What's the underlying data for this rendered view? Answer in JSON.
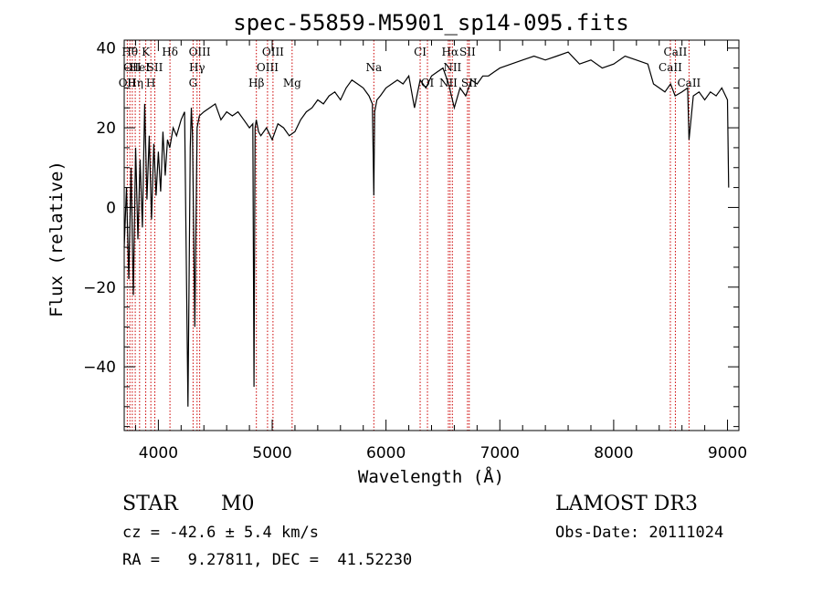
{
  "chart_data": {
    "type": "line",
    "title": "spec-55859-M5901_sp14-095.fits",
    "xlabel": "Wavelength (Å)",
    "ylabel": "Flux (relative)",
    "xlim": [
      3700,
      9100
    ],
    "ylim": [
      -56,
      42
    ],
    "xticks": [
      4000,
      5000,
      6000,
      7000,
      8000,
      9000
    ],
    "yticks": [
      -40,
      -20,
      0,
      20,
      40
    ],
    "series": [
      {
        "name": "flux",
        "x": [
          3700,
          3720,
          3740,
          3760,
          3780,
          3800,
          3820,
          3840,
          3860,
          3880,
          3900,
          3920,
          3940,
          3960,
          3980,
          4000,
          4020,
          4040,
          4060,
          4080,
          4100,
          4130,
          4160,
          4200,
          4230,
          4260,
          4280,
          4290,
          4300,
          4320,
          4340,
          4360,
          4400,
          4450,
          4500,
          4550,
          4600,
          4650,
          4700,
          4750,
          4800,
          4830,
          4840,
          4850,
          4860,
          4880,
          4900,
          4950,
          5000,
          5050,
          5100,
          5150,
          5200,
          5250,
          5300,
          5350,
          5400,
          5450,
          5500,
          5550,
          5600,
          5650,
          5700,
          5750,
          5800,
          5850,
          5880,
          5893,
          5900,
          5920,
          5950,
          6000,
          6050,
          6100,
          6150,
          6200,
          6250,
          6300,
          6350,
          6400,
          6450,
          6500,
          6550,
          6600,
          6650,
          6700,
          6750,
          6800,
          6850,
          6900,
          6950,
          7000,
          7100,
          7200,
          7300,
          7400,
          7500,
          7600,
          7700,
          7800,
          7900,
          8000,
          8100,
          8200,
          8300,
          8350,
          8400,
          8450,
          8500,
          8540,
          8600,
          8650,
          8662,
          8700,
          8750,
          8800,
          8850,
          8900,
          8950,
          9000,
          9010
        ],
        "values": [
          -10,
          5,
          -18,
          10,
          -22,
          15,
          -8,
          12,
          -5,
          26,
          2,
          18,
          -3,
          16,
          3,
          14,
          4,
          19,
          8,
          17,
          15,
          20,
          18,
          22,
          24,
          -50,
          15,
          25,
          18,
          -30,
          20,
          23,
          24,
          25,
          26,
          22,
          24,
          23,
          24,
          22,
          20,
          21,
          -45,
          20,
          22,
          19,
          18,
          20,
          17,
          21,
          20,
          18,
          19,
          22,
          24,
          25,
          27,
          26,
          28,
          29,
          27,
          30,
          32,
          31,
          30,
          28,
          26,
          3,
          24,
          27,
          28,
          30,
          31,
          32,
          31,
          33,
          25,
          32,
          30,
          33,
          34,
          35,
          31,
          25,
          30,
          28,
          32,
          31,
          33,
          33,
          34,
          35,
          36,
          37,
          38,
          37,
          38,
          39,
          36,
          37,
          35,
          36,
          38,
          37,
          36,
          31,
          30,
          29,
          31,
          28,
          29,
          30,
          17,
          28,
          29,
          27,
          29,
          28,
          30,
          27,
          5
        ]
      }
    ],
    "line_markers": [
      {
        "wl": 3727,
        "label": "OII",
        "row": 3
      },
      {
        "wl": 3750,
        "label": "Hθ",
        "row": 1
      },
      {
        "wl": 3771,
        "label": "OII",
        "row": 2
      },
      {
        "wl": 3797,
        "label": "Hη",
        "row": 3
      },
      {
        "wl": 3835,
        "label": "HeI",
        "row": 2
      },
      {
        "wl": 3889,
        "label": "K",
        "row": 1
      },
      {
        "wl": 3934,
        "label": "H",
        "row": 3
      },
      {
        "wl": 3969,
        "label": "SII",
        "row": 2
      },
      {
        "wl": 4102,
        "label": "Hδ",
        "row": 1
      },
      {
        "wl": 4305,
        "label": "G",
        "row": 3
      },
      {
        "wl": 4340,
        "label": "Hγ",
        "row": 2
      },
      {
        "wl": 4363,
        "label": "OIII",
        "row": 1
      },
      {
        "wl": 4861,
        "label": "Hβ",
        "row": 3
      },
      {
        "wl": 4959,
        "label": "OIII",
        "row": 2
      },
      {
        "wl": 5007,
        "label": "OIII",
        "row": 1
      },
      {
        "wl": 5175,
        "label": "Mg",
        "row": 3
      },
      {
        "wl": 5893,
        "label": "Na",
        "row": 2
      },
      {
        "wl": 6300,
        "label": "CI",
        "row": 1
      },
      {
        "wl": 6364,
        "label": "OI",
        "row": 3
      },
      {
        "wl": 6548,
        "label": "NII",
        "row": 3
      },
      {
        "wl": 6563,
        "label": "Hα",
        "row": 1
      },
      {
        "wl": 6583,
        "label": "NII",
        "row": 2
      },
      {
        "wl": 6716,
        "label": "SII",
        "row": 1
      },
      {
        "wl": 6731,
        "label": "SII",
        "row": 3
      },
      {
        "wl": 8498,
        "label": "CaII",
        "row": 2
      },
      {
        "wl": 8542,
        "label": "CaII",
        "row": 1
      },
      {
        "wl": 8662,
        "label": "CaII",
        "row": 3
      }
    ],
    "marker_color": "#cc0000",
    "line_color": "#000000"
  },
  "footer": {
    "class_label": "STAR",
    "subclass": "M0",
    "survey": "LAMOST DR3",
    "cz": "cz = -42.6 ± 5.4 km/s",
    "obs_date": "Obs-Date: 20111024",
    "coords": "RA =   9.27811, DEC =  41.52230"
  }
}
